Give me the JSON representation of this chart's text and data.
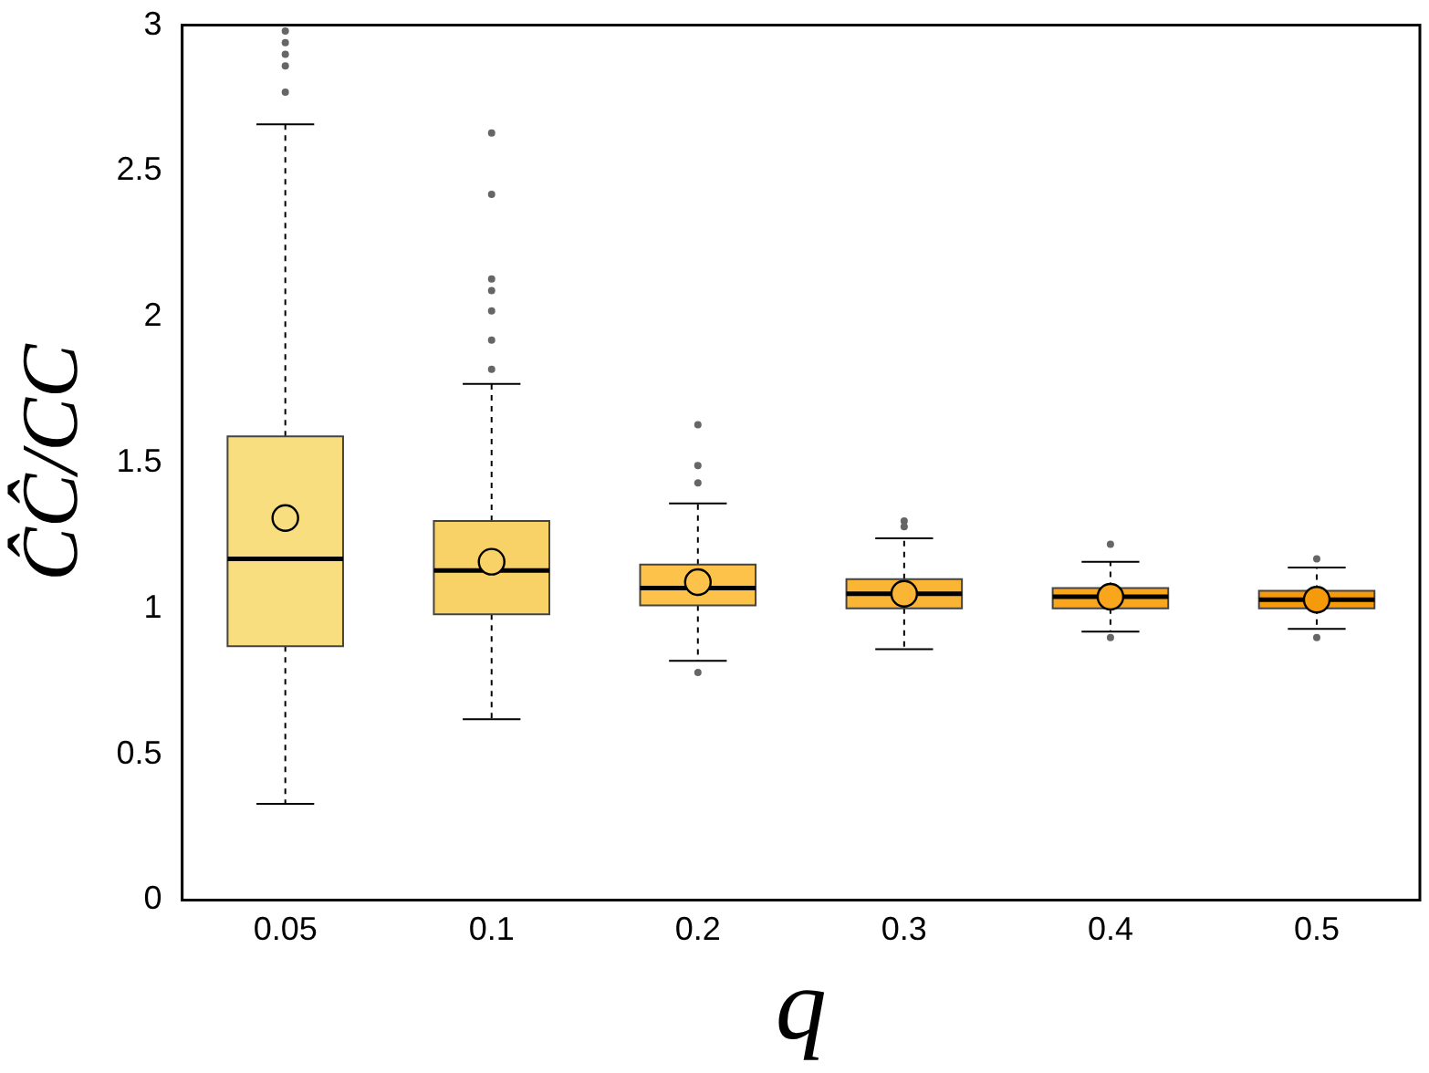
{
  "chart_data": {
    "type": "box",
    "xlabel": "q",
    "ylabel": "ĈĈ/CC",
    "categories": [
      "0.05",
      "0.1",
      "0.2",
      "0.3",
      "0.4",
      "0.5"
    ],
    "colors": [
      "#f8de7e",
      "#f8d266",
      "#fcc24a",
      "#fbb535",
      "#f9a61c",
      "#f59a0b"
    ],
    "boxes": [
      {
        "low": 0.33,
        "q1": 0.87,
        "median": 1.17,
        "q3": 1.59,
        "high": 2.66,
        "mean": 1.31,
        "outliers": [
          2.98,
          2.94,
          2.9,
          2.86,
          2.77
        ]
      },
      {
        "low": 0.62,
        "q1": 0.98,
        "median": 1.13,
        "q3": 1.3,
        "high": 1.77,
        "mean": 1.16,
        "outliers": [
          2.63,
          2.42,
          2.13,
          2.09,
          2.02,
          1.92,
          1.82
        ]
      },
      {
        "low": 0.82,
        "q1": 1.01,
        "median": 1.07,
        "q3": 1.15,
        "high": 1.36,
        "mean": 1.09,
        "outliers": [
          1.63,
          1.49,
          1.43,
          0.78
        ]
      },
      {
        "low": 0.86,
        "q1": 1.0,
        "median": 1.05,
        "q3": 1.1,
        "high": 1.24,
        "mean": 1.05,
        "outliers": [
          1.3,
          1.28
        ]
      },
      {
        "low": 0.92,
        "q1": 1.0,
        "median": 1.04,
        "q3": 1.07,
        "high": 1.16,
        "mean": 1.04,
        "outliers": [
          1.22,
          0.9
        ]
      },
      {
        "low": 0.93,
        "q1": 1.0,
        "median": 1.03,
        "q3": 1.06,
        "high": 1.14,
        "mean": 1.03,
        "outliers": [
          1.17,
          0.9
        ]
      }
    ],
    "ylim": [
      0,
      3
    ],
    "yticks": [
      0,
      0.5,
      1,
      1.5,
      2,
      2.5,
      3
    ],
    "grid": false,
    "legend": false,
    "marker": "circle"
  }
}
